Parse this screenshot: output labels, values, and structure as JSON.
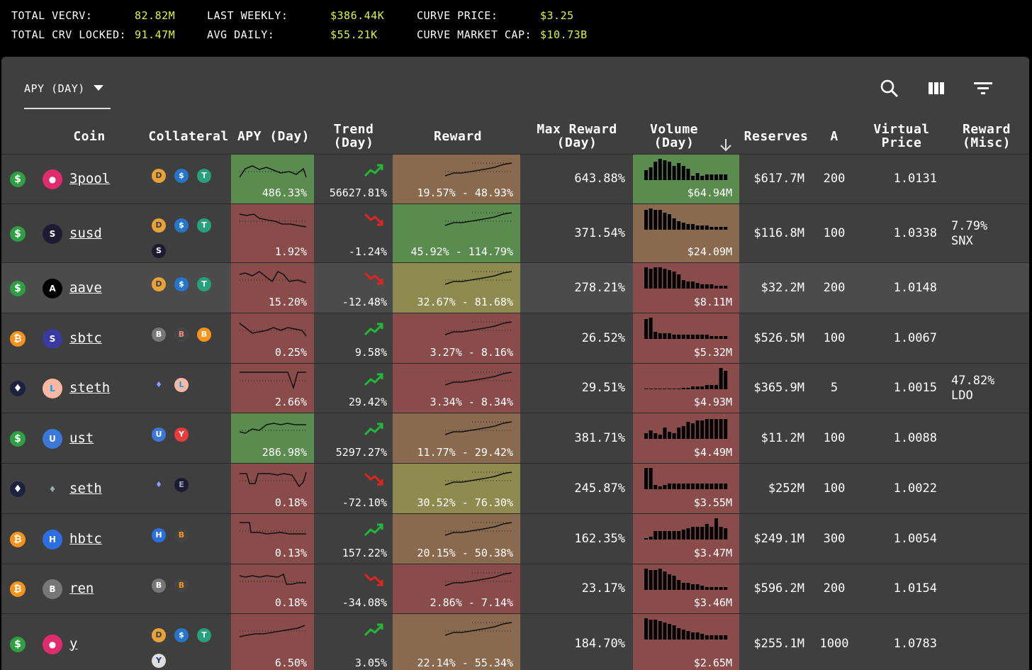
{
  "stats": {
    "total_vecrv_label": "TOTAL VECRV:",
    "total_vecrv": "82.82M",
    "total_crv_locked_label": "TOTAL CRV LOCKED:",
    "total_crv_locked": "91.47M",
    "last_weekly_label": "LAST WEEKLY:",
    "last_weekly": "$386.44K",
    "avg_daily_label": "AVG DAILY:",
    "avg_daily": "$55.21K",
    "curve_price_label": "CURVE PRICE:",
    "curve_price": "$3.25",
    "curve_market_cap_label": "CURVE MARKET CAP:",
    "curve_market_cap": "$10.73B"
  },
  "toolbar": {
    "selector_label": "APY (DAY)",
    "icons": [
      "search-icon",
      "columns-icon",
      "filter-icon"
    ]
  },
  "headers": {
    "coin": "Coin",
    "collateral": "Collateral",
    "apy": "APY (Day)",
    "trend": "Trend (Day)",
    "reward": "Reward",
    "max_reward": "Max Reward (Day)",
    "volume": "Volume (Day)",
    "reserves": "Reserves",
    "a": "A",
    "virtual_price": "Virtual Price",
    "reward_misc": "Reward (Misc)"
  },
  "colors": {
    "green_cell": "#5a8b4f",
    "red_cell": "#8a4b4b",
    "yellow_cell": "#8f8a4f",
    "orange_cell": "#8a6a4f",
    "accent": "#d8f542",
    "trend_up": "#22b83a",
    "trend_down": "#e0251e"
  },
  "rows": [
    {
      "type": "dollar",
      "coin": "3pool",
      "apy": "486.33%",
      "trend": "56627.81%",
      "trend_dir": "up",
      "reward": "19.57% - 48.93%",
      "max_reward": "643.88%",
      "volume": "$64.94M",
      "reserves": "$617.7M",
      "a": "200",
      "virtual_price": "1.0131",
      "misc": "",
      "apy_color": "green",
      "reward_color": "orange",
      "volume_color": "green"
    },
    {
      "type": "dollar",
      "coin": "susd",
      "apy": "1.92%",
      "trend": "-1.24%",
      "trend_dir": "down",
      "reward": "45.92% - 114.79%",
      "max_reward": "371.54%",
      "volume": "$24.09M",
      "reserves": "$116.8M",
      "a": "100",
      "virtual_price": "1.0338",
      "misc": "7.79% SNX",
      "apy_color": "red",
      "reward_color": "green",
      "volume_color": "orange"
    },
    {
      "type": "dollar",
      "coin": "aave",
      "apy": "15.20%",
      "trend": "-12.48%",
      "trend_dir": "down",
      "reward": "32.67% - 81.68%",
      "max_reward": "278.21%",
      "volume": "$8.11M",
      "reserves": "$32.2M",
      "a": "200",
      "virtual_price": "1.0148",
      "misc": "",
      "apy_color": "red",
      "reward_color": "yellow",
      "volume_color": "red"
    },
    {
      "type": "btc",
      "coin": "sbtc",
      "apy": "0.25%",
      "trend": "9.58%",
      "trend_dir": "up",
      "reward": "3.27% - 8.16%",
      "max_reward": "26.52%",
      "volume": "$5.32M",
      "reserves": "$526.5M",
      "a": "100",
      "virtual_price": "1.0067",
      "misc": "",
      "apy_color": "red",
      "reward_color": "red",
      "volume_color": "red"
    },
    {
      "type": "eth",
      "coin": "steth",
      "apy": "2.66%",
      "trend": "29.42%",
      "trend_dir": "up",
      "reward": "3.34% - 8.34%",
      "max_reward": "29.51%",
      "volume": "$4.93M",
      "reserves": "$365.9M",
      "a": "5",
      "virtual_price": "1.0015",
      "misc": "47.82% LDO",
      "apy_color": "red",
      "reward_color": "red",
      "volume_color": "red"
    },
    {
      "type": "dollar",
      "coin": "ust",
      "apy": "286.98%",
      "trend": "5297.27%",
      "trend_dir": "up",
      "reward": "11.77% - 29.42%",
      "max_reward": "381.71%",
      "volume": "$4.49M",
      "reserves": "$11.2M",
      "a": "100",
      "virtual_price": "1.0088",
      "misc": "",
      "apy_color": "green",
      "reward_color": "orange",
      "volume_color": "red"
    },
    {
      "type": "eth",
      "coin": "seth",
      "apy": "0.18%",
      "trend": "-72.10%",
      "trend_dir": "down",
      "reward": "30.52% - 76.30%",
      "max_reward": "245.87%",
      "volume": "$3.55M",
      "reserves": "$252M",
      "a": "100",
      "virtual_price": "1.0022",
      "misc": "",
      "apy_color": "red",
      "reward_color": "yellow",
      "volume_color": "red"
    },
    {
      "type": "btc",
      "coin": "hbtc",
      "apy": "0.13%",
      "trend": "157.22%",
      "trend_dir": "up",
      "reward": "20.15% - 50.38%",
      "max_reward": "162.35%",
      "volume": "$3.47M",
      "reserves": "$249.1M",
      "a": "300",
      "virtual_price": "1.0054",
      "misc": "",
      "apy_color": "red",
      "reward_color": "orange",
      "volume_color": "red"
    },
    {
      "type": "btc",
      "coin": "ren",
      "apy": "0.18%",
      "trend": "-34.08%",
      "trend_dir": "down",
      "reward": "2.86% - 7.14%",
      "max_reward": "23.17%",
      "volume": "$3.46M",
      "reserves": "$596.2M",
      "a": "200",
      "virtual_price": "1.0154",
      "misc": "",
      "apy_color": "red",
      "reward_color": "red",
      "volume_color": "red"
    },
    {
      "type": "dollar",
      "coin": "y",
      "apy": "6.50%",
      "trend": "3.05%",
      "trend_dir": "up",
      "reward": "22.14% - 55.34%",
      "max_reward": "184.70%",
      "volume": "$2.65M",
      "reserves": "$255.1M",
      "a": "1000",
      "virtual_price": "1.0783",
      "misc": "",
      "apy_color": "red",
      "reward_color": "orange",
      "volume_color": "red"
    }
  ]
}
